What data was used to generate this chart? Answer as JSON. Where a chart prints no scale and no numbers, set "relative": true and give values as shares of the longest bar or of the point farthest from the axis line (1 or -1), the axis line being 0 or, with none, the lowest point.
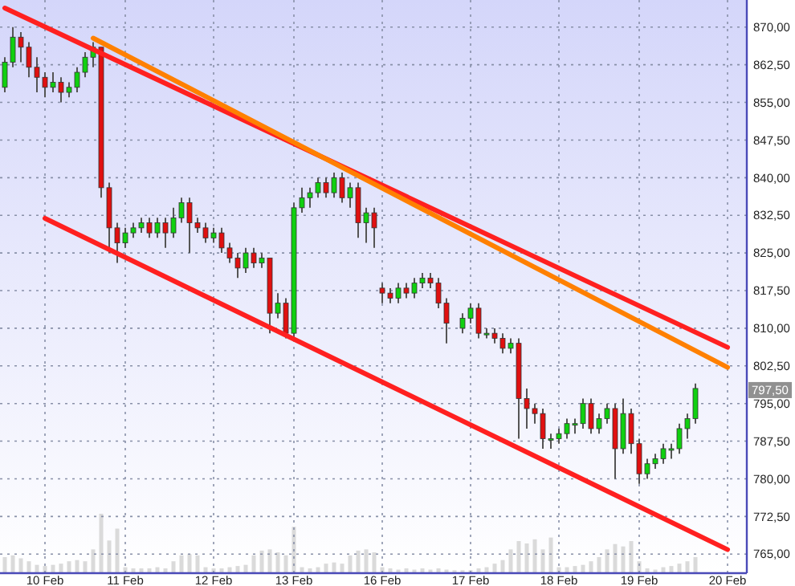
{
  "chart_data": [
    {
      "type": "candlestick",
      "grid": true,
      "categories": [
        null,
        null,
        null,
        null,
        null,
        "10 Feb",
        null,
        null,
        null,
        null,
        null,
        null,
        null,
        null,
        null,
        "11 Feb",
        null,
        null,
        null,
        null,
        null,
        null,
        null,
        null,
        null,
        null,
        "12 Feb",
        null,
        null,
        null,
        null,
        null,
        null,
        null,
        null,
        null,
        "13 Feb",
        null,
        null,
        null,
        null,
        null,
        null,
        null,
        null,
        null,
        null,
        "16 Feb",
        null,
        null,
        null,
        null,
        null,
        null,
        null,
        null,
        null,
        null,
        "17 Feb",
        null,
        null,
        null,
        null,
        null,
        null,
        null,
        null,
        null,
        null,
        "18 Feb",
        null,
        null,
        null,
        null,
        null,
        null,
        null,
        null,
        null,
        "19 Feb",
        null,
        null,
        null,
        null,
        null,
        null,
        null,
        null,
        null,
        null,
        "20 Feb"
      ],
      "ylim": [
        761.2,
        875.4
      ],
      "yticks": [
        {
          "value": 765,
          "label": "765,00"
        },
        {
          "value": 772.5,
          "label": "772,50"
        },
        {
          "value": 780,
          "label": "780,00"
        },
        {
          "value": 787.5,
          "label": "787,50"
        },
        {
          "value": 795,
          "label": "795,00"
        },
        {
          "value": 802.5,
          "label": "802,50"
        },
        {
          "value": 810,
          "label": "810,00"
        },
        {
          "value": 817.5,
          "label": "817,50"
        },
        {
          "value": 825,
          "label": "825,00"
        },
        {
          "value": 832.5,
          "label": "832,50"
        },
        {
          "value": 840,
          "label": "840,00"
        },
        {
          "value": 847.5,
          "label": "847,50"
        },
        {
          "value": 855,
          "label": "855,00"
        },
        {
          "value": 862.5,
          "label": "862,50"
        },
        {
          "value": 870,
          "label": "870,00"
        }
      ],
      "ohlc": [
        [
          858,
          864,
          857,
          863
        ],
        [
          863,
          870,
          862,
          868
        ],
        [
          868,
          869,
          863,
          866
        ],
        [
          866,
          867,
          860,
          862
        ],
        [
          862,
          864,
          857,
          860
        ],
        [
          860,
          861,
          856,
          858
        ],
        [
          858,
          861,
          857,
          859
        ],
        [
          859,
          860,
          855,
          857
        ],
        [
          857,
          859,
          856,
          858
        ],
        [
          858,
          862,
          857,
          861
        ],
        [
          861,
          865,
          860,
          864
        ],
        [
          864,
          867,
          862,
          866
        ],
        [
          866,
          866,
          836,
          838
        ],
        [
          838,
          839,
          825,
          830
        ],
        [
          830,
          831,
          823,
          827
        ],
        [
          827,
          830,
          826,
          829
        ],
        [
          829,
          831,
          828,
          830
        ],
        [
          830,
          832,
          829,
          831
        ],
        [
          831,
          832,
          828,
          829
        ],
        [
          829,
          832,
          828,
          831
        ],
        [
          831,
          832,
          826,
          829
        ],
        [
          829,
          834,
          828,
          832
        ],
        [
          832,
          836,
          831,
          835
        ],
        [
          835,
          836,
          825,
          831
        ],
        [
          831,
          832,
          829,
          830
        ],
        [
          830,
          831,
          827,
          828
        ],
        [
          828,
          830,
          827,
          829
        ],
        [
          829,
          830,
          825,
          826
        ],
        [
          826,
          827,
          823,
          824
        ],
        [
          824,
          825,
          820,
          822
        ],
        [
          822,
          826,
          821,
          825
        ],
        [
          825,
          826,
          822,
          823
        ],
        [
          823,
          825,
          822,
          824
        ],
        [
          824,
          824,
          809,
          813
        ],
        [
          813,
          817,
          812,
          815
        ],
        [
          815,
          816,
          808,
          809
        ],
        [
          809,
          835,
          808,
          834
        ],
        [
          834,
          838,
          833,
          836
        ],
        [
          836,
          838,
          834,
          837
        ],
        [
          837,
          840,
          836,
          839
        ],
        [
          839,
          840,
          836,
          837
        ],
        [
          837,
          841,
          836,
          840
        ],
        [
          840,
          841,
          835,
          836
        ],
        [
          836,
          839,
          834,
          838
        ],
        [
          838,
          839,
          828,
          831
        ],
        [
          831,
          834,
          827,
          833
        ],
        [
          833,
          834,
          826,
          830
        ],
        [
          818,
          819,
          815,
          817
        ],
        [
          817,
          818,
          815,
          816
        ],
        [
          816,
          819,
          815,
          818
        ],
        [
          818,
          819,
          816,
          817
        ],
        [
          817,
          820,
          816,
          819
        ],
        [
          819,
          821,
          818,
          820
        ],
        [
          820,
          821,
          818,
          819
        ],
        [
          819,
          820,
          814,
          815
        ],
        [
          815,
          816,
          807,
          811
        ],
        null,
        [
          810,
          813,
          809,
          812
        ],
        [
          812,
          815,
          811,
          814
        ],
        [
          814,
          815,
          808,
          809
        ],
        [
          809,
          810,
          808,
          809
        ],
        [
          809,
          810,
          807,
          808
        ],
        [
          808,
          809,
          805,
          806
        ],
        [
          806,
          808,
          805,
          807
        ],
        [
          807,
          808,
          788,
          796
        ],
        [
          796,
          798,
          790,
          794
        ],
        [
          794,
          795,
          791,
          793
        ],
        [
          793,
          794,
          786,
          788
        ],
        [
          788,
          789,
          786,
          788
        ],
        [
          788,
          790,
          787,
          789
        ],
        [
          789,
          792,
          788,
          791
        ],
        [
          791,
          792,
          789,
          791
        ],
        [
          791,
          796,
          790,
          795
        ],
        [
          795,
          796,
          789,
          790
        ],
        [
          790,
          793,
          789,
          792
        ],
        [
          792,
          795,
          791,
          794
        ],
        [
          794,
          795,
          780,
          786
        ],
        [
          786,
          796,
          785,
          793
        ],
        [
          793,
          794,
          785,
          787
        ],
        [
          787,
          788,
          779,
          781
        ],
        [
          781,
          784,
          780,
          783
        ],
        [
          783,
          785,
          782,
          784
        ],
        [
          784,
          787,
          783,
          786
        ],
        [
          786,
          787,
          784,
          786
        ],
        [
          786,
          791,
          785,
          790
        ],
        [
          790,
          793,
          788,
          792
        ],
        [
          792,
          799,
          791,
          798
        ],
        null,
        null,
        null,
        null
      ],
      "series": [
        {
          "type": "line",
          "color": "#ff2020",
          "values": [
            873.8,
            null,
            null,
            null,
            null,
            null,
            null,
            null,
            null,
            null,
            null,
            null,
            null,
            null,
            null,
            null,
            null,
            null,
            null,
            null,
            null,
            null,
            null,
            null,
            null,
            null,
            null,
            null,
            null,
            null,
            null,
            null,
            null,
            null,
            null,
            null,
            null,
            null,
            null,
            null,
            null,
            null,
            null,
            null,
            null,
            null,
            null,
            null,
            null,
            null,
            null,
            null,
            null,
            null,
            null,
            null,
            null,
            null,
            null,
            null,
            null,
            null,
            null,
            null,
            null,
            null,
            null,
            null,
            null,
            null,
            null,
            null,
            null,
            null,
            null,
            null,
            null,
            null,
            null,
            null,
            null,
            null,
            null,
            null,
            null,
            null,
            null,
            null,
            null,
            null,
            806.2
          ]
        },
        {
          "type": "line",
          "color": "#ff8000",
          "values": [
            null,
            null,
            null,
            null,
            null,
            null,
            null,
            null,
            null,
            null,
            null,
            867.8,
            null,
            null,
            null,
            null,
            null,
            null,
            null,
            null,
            null,
            null,
            null,
            null,
            null,
            null,
            null,
            null,
            null,
            null,
            null,
            null,
            null,
            null,
            null,
            null,
            null,
            null,
            null,
            null,
            null,
            null,
            null,
            null,
            null,
            null,
            null,
            null,
            null,
            null,
            null,
            null,
            null,
            null,
            null,
            null,
            null,
            null,
            null,
            null,
            null,
            null,
            null,
            null,
            null,
            null,
            null,
            null,
            null,
            null,
            null,
            null,
            null,
            null,
            null,
            null,
            null,
            null,
            null,
            null,
            null,
            null,
            null,
            null,
            null,
            null,
            null,
            null,
            null,
            null,
            802.2
          ]
        },
        {
          "type": "line",
          "color": "#ff2020",
          "values": [
            null,
            null,
            null,
            null,
            null,
            831.9,
            null,
            null,
            null,
            null,
            null,
            null,
            null,
            null,
            null,
            null,
            null,
            null,
            null,
            null,
            null,
            null,
            null,
            null,
            null,
            null,
            null,
            null,
            null,
            null,
            null,
            null,
            null,
            null,
            null,
            null,
            null,
            null,
            null,
            null,
            null,
            null,
            null,
            null,
            null,
            null,
            null,
            null,
            null,
            null,
            null,
            null,
            null,
            null,
            null,
            null,
            null,
            null,
            null,
            null,
            null,
            null,
            null,
            null,
            null,
            null,
            null,
            null,
            null,
            null,
            null,
            null,
            null,
            null,
            null,
            null,
            null,
            null,
            null,
            null,
            null,
            null,
            null,
            null,
            null,
            null,
            null,
            null,
            null,
            null,
            765.9
          ]
        }
      ],
      "annotations": [
        "797,50"
      ]
    },
    {
      "type": "bar",
      "relative": true,
      "color": "#dadada",
      "categories": [
        null,
        null,
        null,
        null,
        null,
        null,
        null,
        null,
        null,
        null,
        null,
        null,
        null,
        null,
        null,
        null,
        null,
        null,
        null,
        null,
        null,
        null,
        null,
        null,
        null,
        null,
        null,
        null,
        null,
        null,
        null,
        null,
        null,
        null,
        null,
        null,
        null,
        null,
        null,
        null,
        null,
        null,
        null,
        null,
        null,
        null,
        null,
        null,
        null,
        null,
        null,
        null,
        null,
        null,
        null,
        null,
        null,
        null,
        null,
        null,
        null,
        null,
        null,
        null,
        null,
        null,
        null,
        null,
        null,
        null,
        null,
        null,
        null,
        null,
        null,
        null,
        null,
        null,
        null,
        null,
        null,
        null,
        null,
        null,
        null,
        null,
        null,
        null,
        null,
        null,
        null
      ],
      "values": [
        0.27,
        0.3,
        0.25,
        0.2,
        0.14,
        0.12,
        0.14,
        0.16,
        0.2,
        0.22,
        0.2,
        0.4,
        1,
        0.55,
        0.75,
        0.1,
        0.08,
        0.08,
        0.08,
        0.1,
        0.08,
        0.2,
        0.3,
        0.32,
        0.3,
        0.1,
        0.08,
        0.08,
        0.1,
        0.12,
        0.14,
        0.3,
        0.38,
        0.4,
        0.35,
        0.3,
        0.78,
        0.1,
        0.08,
        0.1,
        0.16,
        0.18,
        0.16,
        0.3,
        0.38,
        0.4,
        0.35,
        0.1,
        0.08,
        0.06,
        0.08,
        0.06,
        0.08,
        0.06,
        0.08,
        0.06,
        0.05,
        0.05,
        0.05,
        0.08,
        0.1,
        0.16,
        0.22,
        0.4,
        0.54,
        0.5,
        0.57,
        0.4,
        0.6,
        0.1,
        0.1,
        0.12,
        0.14,
        0.2,
        0.27,
        0.4,
        0.49,
        0.45,
        0.54,
        0.2,
        0.08,
        0.06,
        0.1,
        0.12,
        0.16,
        0.2,
        0.27,
        null,
        null,
        null,
        null
      ]
    }
  ]
}
